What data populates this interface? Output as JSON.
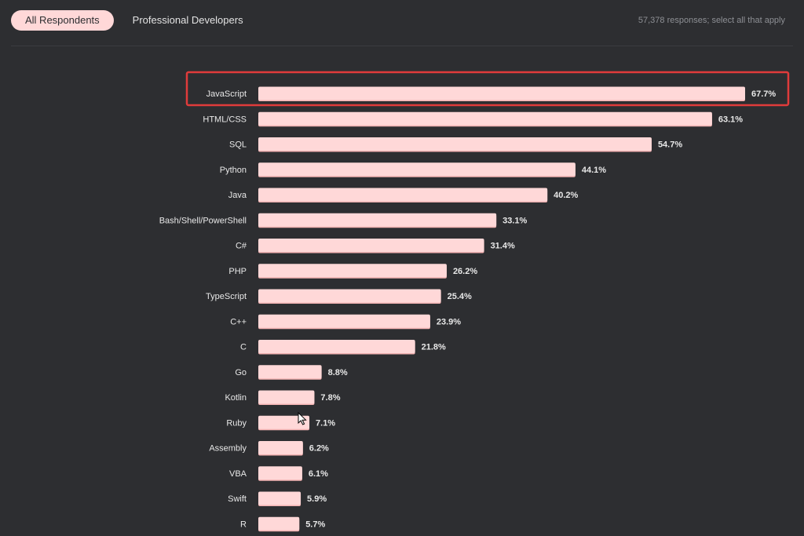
{
  "tabs": [
    {
      "label": "All Respondents",
      "active": true
    },
    {
      "label": "Professional Developers",
      "active": false
    }
  ],
  "meta_text": "57,378 responses; select all that apply",
  "highlight_category": "JavaScript",
  "colors": {
    "background": "#2d2e31",
    "bar": "#ffd8d8",
    "bar_shadow": "#f3b3b3",
    "highlight": "#e03b3b",
    "text": "#e8e8e8"
  },
  "chart_data": {
    "type": "bar",
    "orientation": "horizontal",
    "categories": [
      "JavaScript",
      "HTML/CSS",
      "SQL",
      "Python",
      "Java",
      "Bash/Shell/PowerShell",
      "C#",
      "PHP",
      "TypeScript",
      "C++",
      "C",
      "Go",
      "Kotlin",
      "Ruby",
      "Assembly",
      "VBA",
      "Swift",
      "R"
    ],
    "values": [
      67.7,
      63.1,
      54.7,
      44.1,
      40.2,
      33.1,
      31.4,
      26.2,
      25.4,
      23.9,
      21.8,
      8.8,
      7.8,
      7.1,
      6.2,
      6.1,
      5.9,
      5.7
    ],
    "value_suffix": "%",
    "title": "",
    "xlabel": "",
    "ylabel": "",
    "xlim": [
      0,
      67.7
    ],
    "grid": false,
    "legend": "none"
  }
}
